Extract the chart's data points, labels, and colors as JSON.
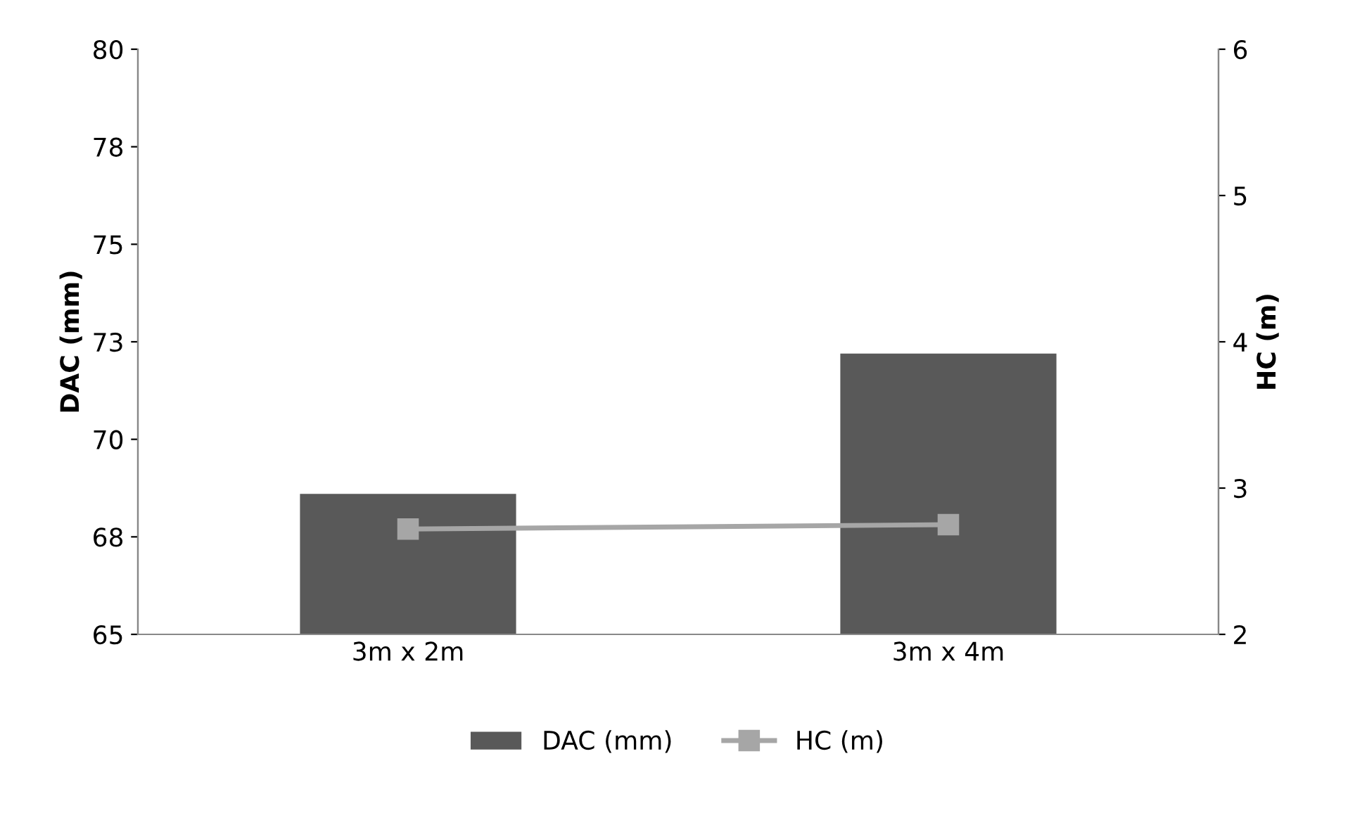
{
  "chart_data": {
    "type": "bar",
    "categories": [
      "3m x 2m",
      "3m x 4m"
    ],
    "series": [
      {
        "name": "DAC (mm)",
        "color": "#595959",
        "values": [
          68.6,
          72.2
        ]
      },
      {
        "name": "HC (m)",
        "type": "line",
        "axis": "y2",
        "color": "#a6a6a6",
        "values": [
          2.72,
          2.75
        ],
        "marker": "square"
      }
    ],
    "ylabel": "DAC (mm)",
    "y2label": "HC (m)",
    "ylim": [
      65,
      80
    ],
    "yticks": [
      65,
      {
        "value": 67.5,
        "label": "68"
      },
      70,
      {
        "value": 72.5,
        "label": "73"
      },
      75,
      {
        "value": 77.5,
        "label": "78"
      },
      80
    ],
    "y2lim": [
      2,
      6
    ],
    "y2ticks": [
      2,
      3,
      4,
      5,
      6
    ],
    "grid": false,
    "legend": "bottom"
  }
}
